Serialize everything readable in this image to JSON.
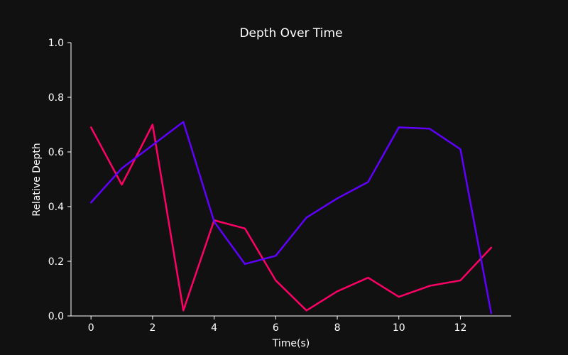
{
  "chart_data": {
    "type": "line",
    "title": "Depth Over Time",
    "xlabel": "Time(s)",
    "ylabel": "Relative Depth",
    "xlim": [
      -0.65,
      13.65
    ],
    "ylim": [
      0,
      1.0
    ],
    "x_ticks": [
      0,
      2,
      4,
      6,
      8,
      10,
      12
    ],
    "y_ticks": [
      0.0,
      0.2,
      0.4,
      0.6,
      0.8,
      1.0
    ],
    "x_tick_labels": [
      "0",
      "2",
      "4",
      "6",
      "8",
      "10",
      "12"
    ],
    "y_tick_labels": [
      "0.0",
      "0.2",
      "0.4",
      "0.6",
      "0.8",
      "1.0"
    ],
    "grid": false,
    "legend": "none",
    "x": [
      0,
      1,
      2,
      3,
      4,
      5,
      6,
      7,
      8,
      9,
      10,
      11,
      12,
      13
    ],
    "series": [
      {
        "color": "#ff0066",
        "values": [
          0.69,
          0.48,
          0.7,
          0.02,
          0.35,
          0.32,
          0.13,
          0.02,
          0.09,
          0.14,
          0.07,
          0.11,
          0.13,
          0.25
        ]
      },
      {
        "color": "#6000ff",
        "values": [
          0.415,
          0.54,
          0.625,
          0.71,
          0.345,
          0.19,
          0.22,
          0.36,
          0.43,
          0.49,
          0.69,
          0.685,
          0.61,
          0.01
        ]
      }
    ]
  },
  "colors": {
    "background": "#111111",
    "axis": "#ffffff",
    "text": "#ffffff"
  }
}
